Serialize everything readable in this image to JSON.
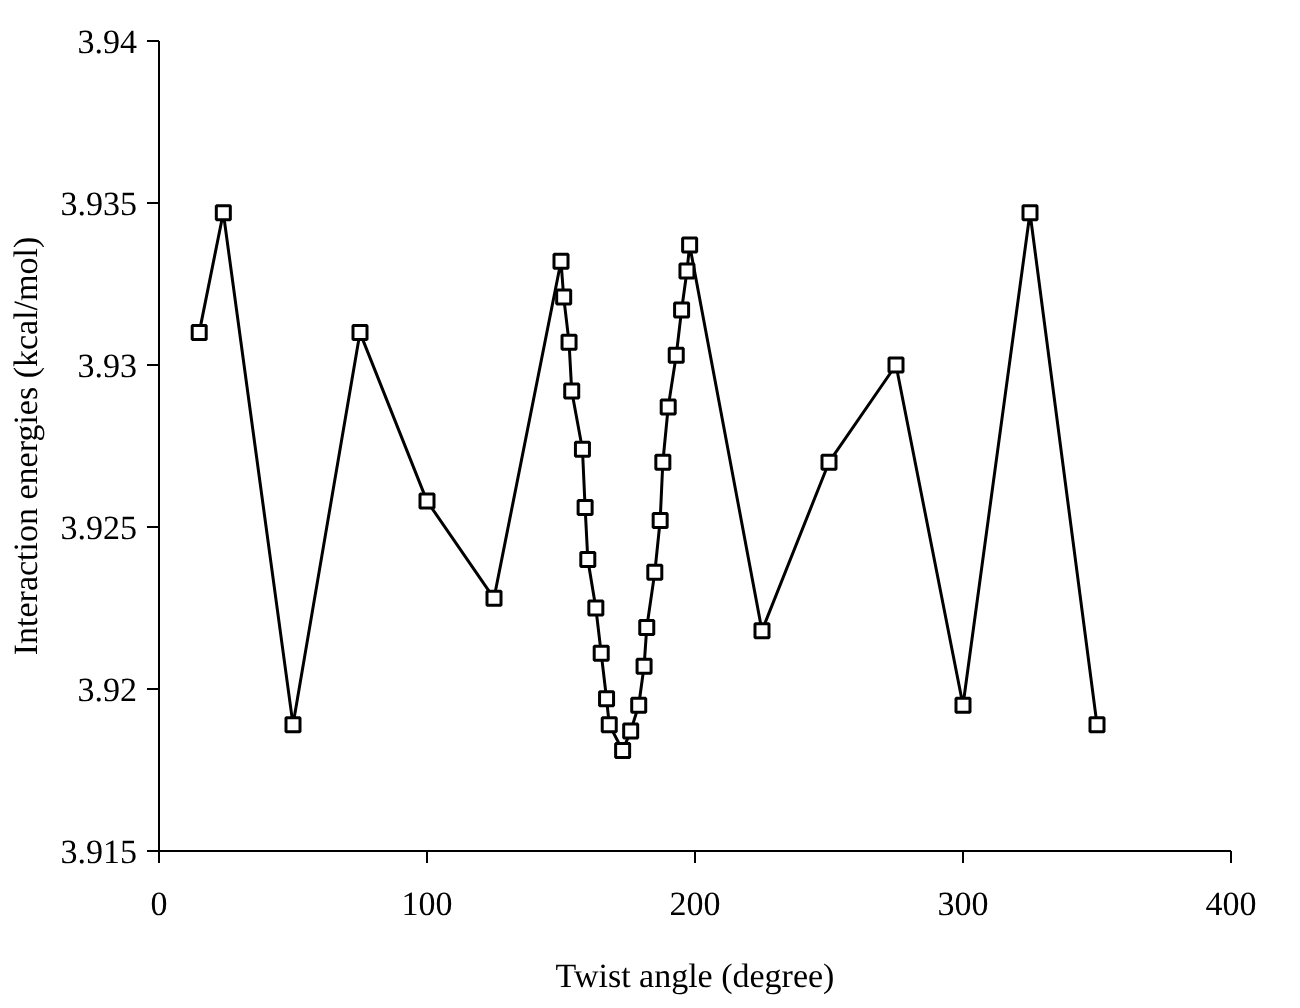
{
  "chart_data": {
    "type": "line",
    "xlabel": "Twist angle (degree)",
    "ylabel": "Interaction energies (kcal/mol)",
    "xlim": [
      0,
      400
    ],
    "xticks": [
      0,
      100,
      200,
      300,
      400
    ],
    "ylim": [
      3.915,
      3.94
    ],
    "yticks": [
      3.915,
      3.92,
      3.925,
      3.93,
      3.935,
      3.94
    ],
    "grid": false,
    "marker": "square",
    "line_style": "solid",
    "series": [
      {
        "color": "#000000",
        "x": [
          15,
          24,
          50,
          75,
          100,
          125,
          150,
          151,
          153,
          154,
          158,
          159,
          160,
          163,
          165,
          167,
          168,
          173,
          176,
          179,
          181,
          182,
          185,
          187,
          188,
          190,
          193,
          195,
          197,
          198,
          225,
          250,
          275,
          300,
          325,
          350
        ],
        "values": [
          3.931,
          3.9347,
          3.9189,
          3.931,
          3.9258,
          3.9228,
          3.9332,
          3.9321,
          3.9307,
          3.9292,
          3.9274,
          3.9256,
          3.924,
          3.9225,
          3.9211,
          3.9197,
          3.9189,
          3.9181,
          3.9187,
          3.9195,
          3.9207,
          3.9219,
          3.9236,
          3.9252,
          3.927,
          3.9287,
          3.9303,
          3.9317,
          3.9329,
          3.9337,
          3.9218,
          3.927,
          3.93,
          3.9195,
          3.9347,
          3.9189
        ]
      }
    ]
  }
}
